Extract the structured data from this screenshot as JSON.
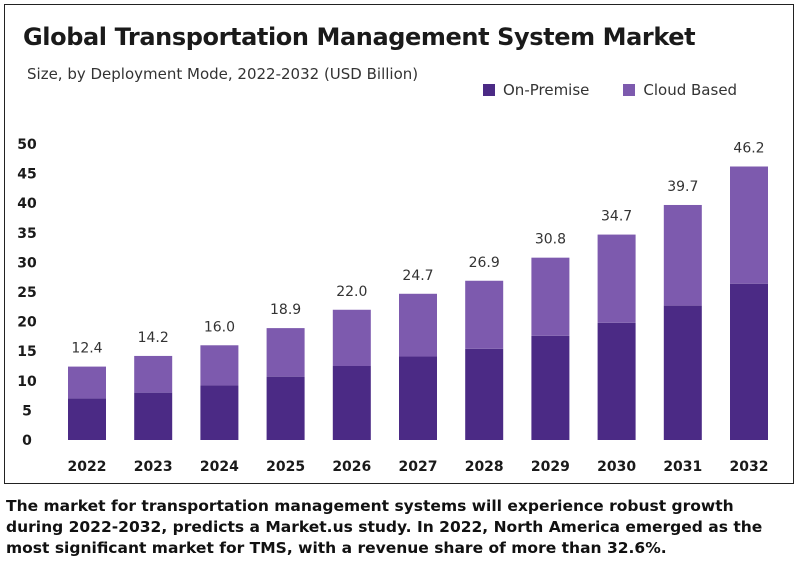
{
  "chart": {
    "title": "Global Transportation Management System Market",
    "subtitle": "Size, by Deployment Mode, 2022-2032 (USD Billion)"
  },
  "legend": [
    {
      "label": "On-Premise",
      "color": "#4b2a85"
    },
    {
      "label": "Cloud Based",
      "color": "#7d5aae"
    }
  ],
  "caption": "The market for transportation management systems will experience robust growth during 2022-2032, predicts a Market.us study. In 2022, North America emerged as the most significant market for TMS, with a revenue share of more than 32.6%.",
  "chart_data": {
    "type": "bar",
    "stacked": true,
    "title": "Global Transportation Management System Market",
    "subtitle": "Size, by Deployment Mode, 2022-2032 (USD Billion)",
    "categories": [
      "2022",
      "2023",
      "2024",
      "2025",
      "2026",
      "2027",
      "2028",
      "2029",
      "2030",
      "2031",
      "2032"
    ],
    "series": [
      {
        "name": "On-Premise",
        "color": "#4b2a85",
        "values": [
          7.0,
          8.0,
          9.2,
          10.7,
          12.5,
          14.1,
          15.4,
          17.6,
          19.8,
          22.7,
          26.4
        ]
      },
      {
        "name": "Cloud Based",
        "color": "#7d5aae",
        "values": [
          5.4,
          6.2,
          6.8,
          8.2,
          9.5,
          10.6,
          11.5,
          13.2,
          14.9,
          17.0,
          19.8
        ]
      }
    ],
    "totals": [
      "12.4",
      "14.2",
      "16.0",
      "18.9",
      "22.0",
      "24.7",
      "26.9",
      "30.8",
      "34.7",
      "39.7",
      "46.2"
    ],
    "ylim": [
      0,
      50
    ],
    "yticks": [
      0,
      5,
      10,
      15,
      20,
      25,
      30,
      35,
      40,
      45,
      50
    ],
    "grid": false,
    "legend_position": "top-right"
  }
}
